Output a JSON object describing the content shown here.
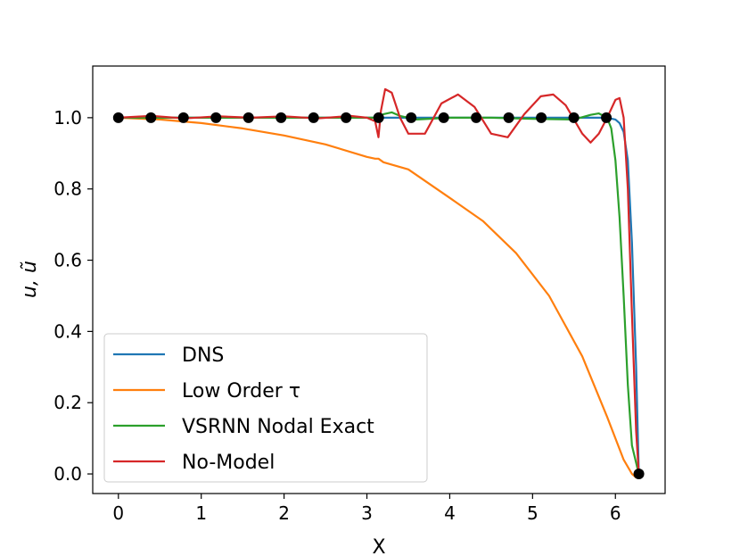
{
  "chart_data": {
    "type": "line",
    "xlabel": "X",
    "ylabel": "u, ũ",
    "xlim": [
      -0.31,
      6.6
    ],
    "ylim": [
      -0.055,
      1.145
    ],
    "xticks": [
      0,
      1,
      2,
      3,
      4,
      5,
      6
    ],
    "yticks": [
      0.0,
      0.2,
      0.4,
      0.6,
      0.8,
      1.0
    ],
    "xtick_labels": [
      "0",
      "1",
      "2",
      "3",
      "4",
      "5",
      "6"
    ],
    "ytick_labels": [
      "0.0",
      "0.2",
      "0.4",
      "0.6",
      "0.8",
      "1.0"
    ],
    "grid": false,
    "legend_position": "lower-left",
    "series": [
      {
        "name": "DNS",
        "color": "#1f77b4",
        "x": [
          0,
          1,
          2,
          3.0,
          3.1,
          3.14,
          3.16,
          3.2,
          4,
          5,
          5.9,
          6.0,
          6.05,
          6.1,
          6.15,
          6.2,
          6.25,
          6.283
        ],
        "y": [
          1.0,
          1.0,
          1.0,
          1.0,
          1.0,
          1.0,
          1.0,
          1.0,
          1.0,
          1.0,
          1.0,
          0.995,
          0.985,
          0.96,
          0.88,
          0.65,
          0.3,
          0.0
        ]
      },
      {
        "name": "Low Order τ",
        "color": "#ff7f0e",
        "x": [
          0,
          0.5,
          1.0,
          1.5,
          2.0,
          2.5,
          3.0,
          3.1,
          3.14,
          3.2,
          3.5,
          4.0,
          4.4,
          4.8,
          5.2,
          5.6,
          5.9,
          6.1,
          6.2,
          6.25,
          6.283
        ],
        "y": [
          1.0,
          0.995,
          0.985,
          0.97,
          0.95,
          0.925,
          0.89,
          0.885,
          0.885,
          0.875,
          0.855,
          0.775,
          0.71,
          0.62,
          0.5,
          0.33,
          0.16,
          0.04,
          0.0,
          -0.01,
          0.0
        ]
      },
      {
        "name": "VSRNN Nodal Exact",
        "color": "#2ca02c",
        "x": [
          0,
          1.0,
          2.0,
          3.0,
          3.14,
          3.2,
          3.3,
          3.4,
          3.6,
          4.0,
          4.5,
          5.0,
          5.5,
          5.7,
          5.8,
          5.9,
          5.95,
          6.0,
          6.05,
          6.1,
          6.15,
          6.2,
          6.283
        ],
        "y": [
          1.0,
          1.0,
          1.0,
          1.0,
          1.0,
          1.01,
          1.015,
          1.005,
          0.995,
          1.0,
          1.0,
          0.997,
          0.995,
          1.008,
          1.012,
          1.0,
          0.97,
          0.88,
          0.72,
          0.5,
          0.25,
          0.08,
          0.0
        ]
      },
      {
        "name": "No-Model",
        "color": "#d62728",
        "x": [
          0,
          0.4,
          0.8,
          1.2,
          1.6,
          2.0,
          2.4,
          2.8,
          3.0,
          3.1,
          3.14,
          3.17,
          3.22,
          3.3,
          3.4,
          3.5,
          3.7,
          3.9,
          4.1,
          4.3,
          4.5,
          4.7,
          4.9,
          5.1,
          5.25,
          5.4,
          5.6,
          5.7,
          5.8,
          5.9,
          6.0,
          6.05,
          6.1,
          6.15,
          6.2,
          6.25,
          6.283
        ],
        "y": [
          1.0,
          1.005,
          0.998,
          1.004,
          1.0,
          1.004,
          0.998,
          1.005,
          1.0,
          0.99,
          0.945,
          1.02,
          1.08,
          1.07,
          1.0,
          0.955,
          0.955,
          1.04,
          1.065,
          1.03,
          0.955,
          0.945,
          1.01,
          1.06,
          1.065,
          1.035,
          0.955,
          0.93,
          0.955,
          1.0,
          1.05,
          1.055,
          1.0,
          0.8,
          0.45,
          0.12,
          0.0
        ]
      }
    ],
    "markers": {
      "color": "#000000",
      "x": [
        0,
        0.3927,
        0.7854,
        1.1781,
        1.5708,
        1.9635,
        2.3562,
        2.7489,
        3.1416,
        3.5343,
        3.927,
        4.3197,
        4.7124,
        5.1051,
        5.4978,
        5.8905,
        6.2832
      ],
      "y": [
        1.0,
        1.0,
        1.0,
        1.0,
        1.0,
        1.0,
        1.0,
        1.0,
        1.0,
        1.0,
        1.0,
        1.0,
        1.0,
        1.0,
        1.0,
        1.0,
        0.0
      ]
    }
  }
}
